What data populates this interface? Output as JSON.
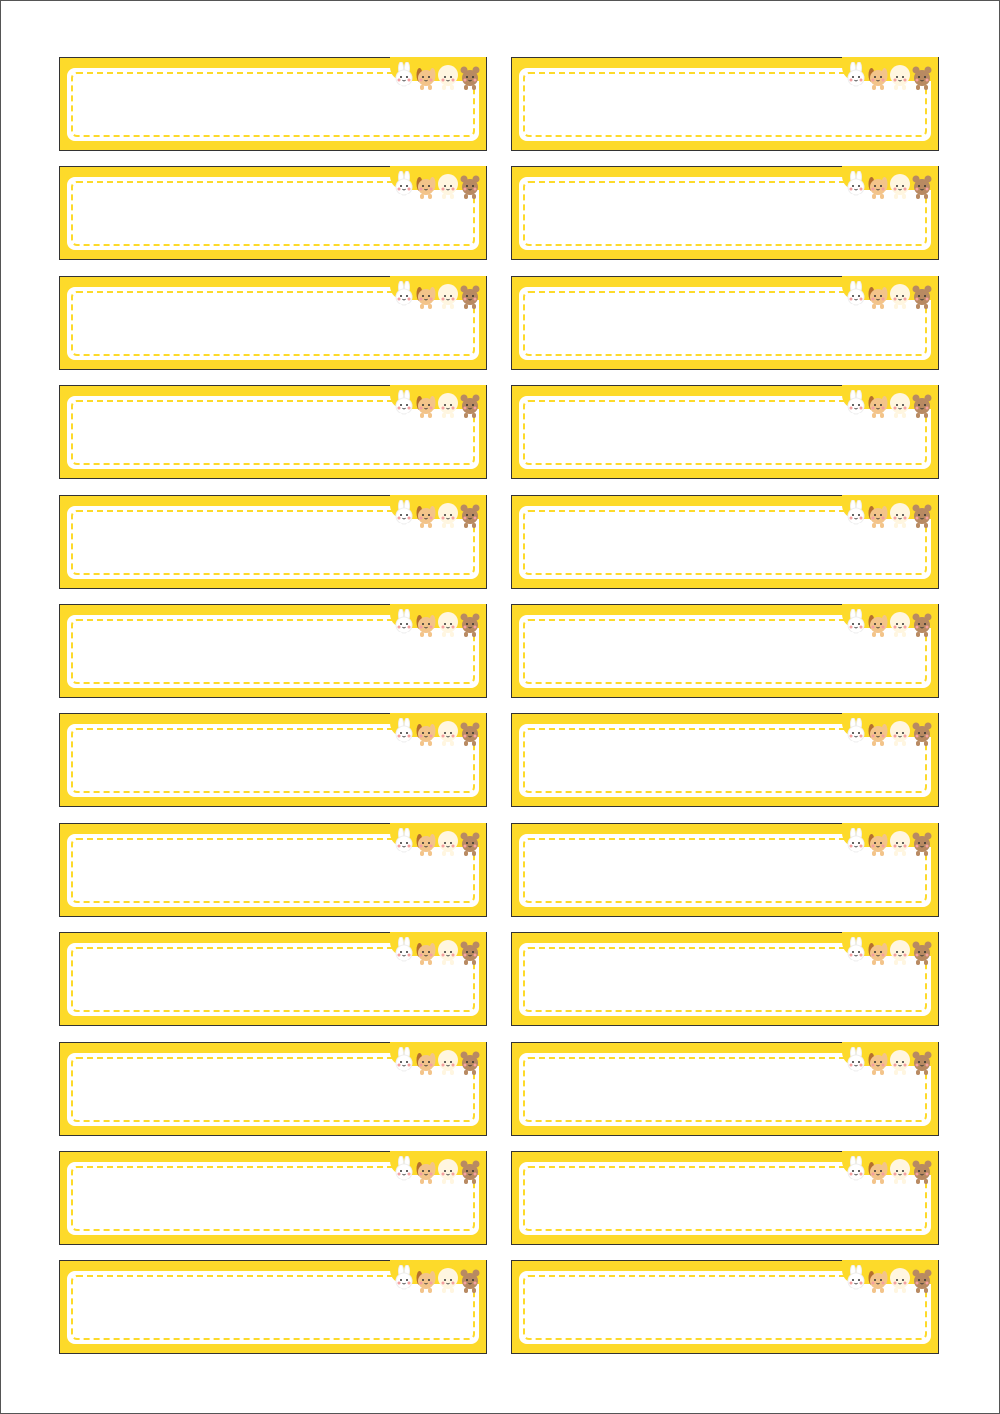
{
  "sheet": {
    "rows": 12,
    "columns": 2,
    "colors": {
      "yellow": "#FDDA2A",
      "border": "#333333",
      "white": "#FFFFFF"
    },
    "animal_icons": [
      {
        "name": "rabbit-icon",
        "color": "#FFFFFF"
      },
      {
        "name": "dog-icon",
        "color": "#F3C48A"
      },
      {
        "name": "sheep-icon",
        "color": "#FFF6E0"
      },
      {
        "name": "bear-icon",
        "color": "#B88A62"
      }
    ]
  }
}
